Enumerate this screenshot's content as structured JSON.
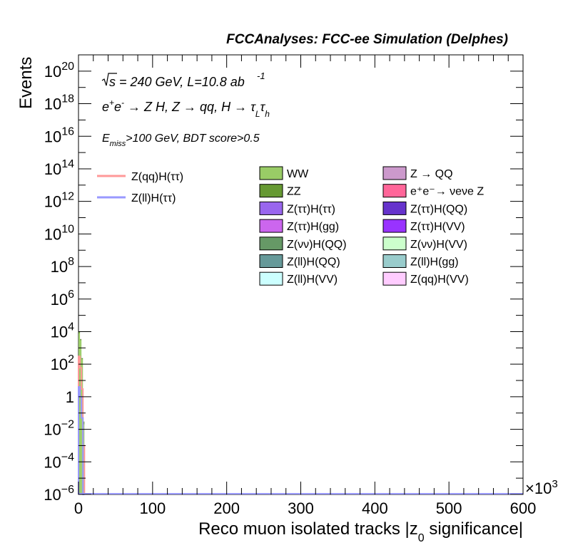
{
  "chart_data": {
    "type": "bar",
    "title": "FCCAnalyses: FCC-ee Simulation (Delphes)",
    "xlabel": "Reco muon isolated tracks |z₀ significance|",
    "xlabel_parts": [
      "Reco muon isolated tracks |z",
      "0",
      " significance|"
    ],
    "ylabel": "Events",
    "x_multiplier": "×10³",
    "x_multiplier_parts": [
      "×10",
      "3"
    ],
    "xlim": [
      0,
      600
    ],
    "ylim": [
      1e-06,
      1e+21
    ],
    "yscale": "log",
    "x_ticks": [
      "0",
      "100",
      "200",
      "300",
      "400",
      "500",
      "600"
    ],
    "y_ticks": [
      {
        "value": 1e-06,
        "base": "10",
        "exp": "−6"
      },
      {
        "value": 0.0001,
        "base": "10",
        "exp": "−4"
      },
      {
        "value": 0.01,
        "base": "10",
        "exp": "−2"
      },
      {
        "value": 1,
        "base": "1",
        "exp": ""
      },
      {
        "value": 100.0,
        "base": "10",
        "exp": "2"
      },
      {
        "value": 10000.0,
        "base": "10",
        "exp": "4"
      },
      {
        "value": 1000000.0,
        "base": "10",
        "exp": "6"
      },
      {
        "value": 100000000.0,
        "base": "10",
        "exp": "8"
      },
      {
        "value": 10000000000.0,
        "base": "10",
        "exp": "10"
      },
      {
        "value": 1000000000000.0,
        "base": "10",
        "exp": "12"
      },
      {
        "value": 100000000000000.0,
        "base": "10",
        "exp": "14"
      },
      {
        "value": 1e+16,
        "base": "10",
        "exp": "16"
      },
      {
        "value": 1e+18,
        "base": "10",
        "exp": "18"
      },
      {
        "value": 1e+20,
        "base": "10",
        "exp": "20"
      }
    ],
    "annotations": {
      "energy": "√s = 240 GeV, L=10.8 ab⁻¹",
      "process": "e⁺e⁻ → Z H, Z → qq, H → τLτh",
      "selection": "Emiss>100 GeV, BDT score>0.5"
    },
    "bin_edges": [
      0,
      2,
      4,
      6,
      8
    ],
    "stack": [
      {
        "name": "WW",
        "color": "#99cc66",
        "values": [
          8000,
          3000,
          200,
          0.02
        ]
      },
      {
        "name": "ZZ",
        "color": "#669933",
        "values": [
          1500,
          400,
          30,
          0.01
        ]
      },
      {
        "name": "Z(ττ)H(ττ)",
        "color": "#9966ee",
        "values": [
          30,
          5,
          0.5,
          0
        ]
      },
      {
        "name": "Z(ττ)H(gg)",
        "color": "#cc66ee",
        "values": [
          2,
          1,
          0.2,
          0
        ]
      },
      {
        "name": "Z(νν)H(QQ)",
        "color": "#669966",
        "values": [
          100,
          40,
          5,
          0
        ]
      },
      {
        "name": "Z(ll)H(QQ)",
        "color": "#669999",
        "values": [
          20,
          10,
          1,
          0
        ]
      },
      {
        "name": "Z(ll)H(VV)",
        "color": "#ccffff",
        "values": [
          5,
          2,
          0.2,
          0
        ]
      },
      {
        "name": "Z → QQ",
        "color": "#cc99cc",
        "values": [
          300,
          60,
          4,
          0
        ]
      },
      {
        "name": "e⁺e⁻→ νeνe Z",
        "color": "#ff6699",
        "values": [
          80,
          30,
          2,
          0
        ]
      },
      {
        "name": "Z(ττ)H(QQ)",
        "color": "#6633cc",
        "values": [
          3,
          1,
          0.1,
          0
        ]
      },
      {
        "name": "Z(ττ)H(VV)",
        "color": "#9933ff",
        "values": [
          1,
          0.5,
          0.05,
          0
        ]
      },
      {
        "name": "Z(νν)H(VV)",
        "color": "#ccffcc",
        "values": [
          10,
          4,
          0.5,
          0
        ]
      },
      {
        "name": "Z(ll)H(gg)",
        "color": "#99cccc",
        "values": [
          2,
          1,
          0.1,
          0
        ]
      },
      {
        "name": "Z(qq)H(VV)",
        "color": "#ffccff",
        "values": [
          20,
          8,
          0.8,
          0
        ]
      }
    ],
    "signals": [
      {
        "name": "Z(qq)H(ττ)",
        "color": "#ff9999",
        "values": [
          300,
          60,
          3,
          0.001
        ]
      },
      {
        "name": "Z(ll)H(ττ)",
        "color": "#9999ff",
        "values": [
          4,
          1,
          0.05,
          1e-06
        ]
      }
    ],
    "legend_placement": "top-center"
  }
}
